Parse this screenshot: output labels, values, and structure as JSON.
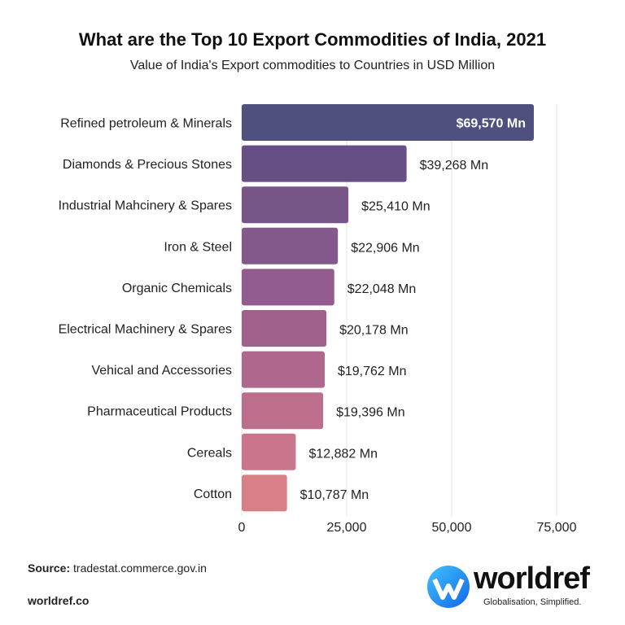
{
  "title": "What are the Top 10 Export Commodities of India, 2021",
  "subtitle": "Value of India's Export commodities to Countries in USD Million",
  "chart_data": {
    "type": "bar",
    "orientation": "horizontal",
    "categories": [
      "Refined petroleum & Minerals",
      "Diamonds & Precious Stones",
      "Industrial Mahcinery & Spares",
      "Iron & Steel",
      "Organic Chemicals",
      "Electrical Machinery & Spares",
      "Vehical and Accessories",
      "Pharmaceutical Products",
      "Cereals",
      "Cotton"
    ],
    "values": [
      69570,
      39268,
      25410,
      22906,
      22048,
      20178,
      19762,
      19396,
      12882,
      10787
    ],
    "data_labels": [
      "$69,570 Mn",
      "$39,268 Mn",
      "$25,410 Mn",
      "$22,906 Mn",
      "$22,048 Mn",
      "$20,178 Mn",
      "$19,762 Mn",
      "$19,396 Mn",
      "$12,882 Mn",
      "$10,787 Mn"
    ],
    "xlim": [
      0,
      75000
    ],
    "xticks": [
      0,
      25000,
      50000,
      75000
    ],
    "xtick_labels": [
      "0",
      "25,000",
      "50,000",
      "75,000"
    ],
    "grid": true,
    "colors": [
      "#50507f",
      "#654f85",
      "#775587",
      "#84598b",
      "#925d8e",
      "#a1618d",
      "#af678d",
      "#bd6e8d",
      "#cb758c",
      "#d97f88"
    ]
  },
  "footer": {
    "source_label": "Source:",
    "source": "tradestat.commerce.gov.in",
    "site": "worldref.co"
  },
  "logo": {
    "name": "worldref",
    "tagline": "Globalisation, Simplified.",
    "color": "#1a8cff"
  }
}
